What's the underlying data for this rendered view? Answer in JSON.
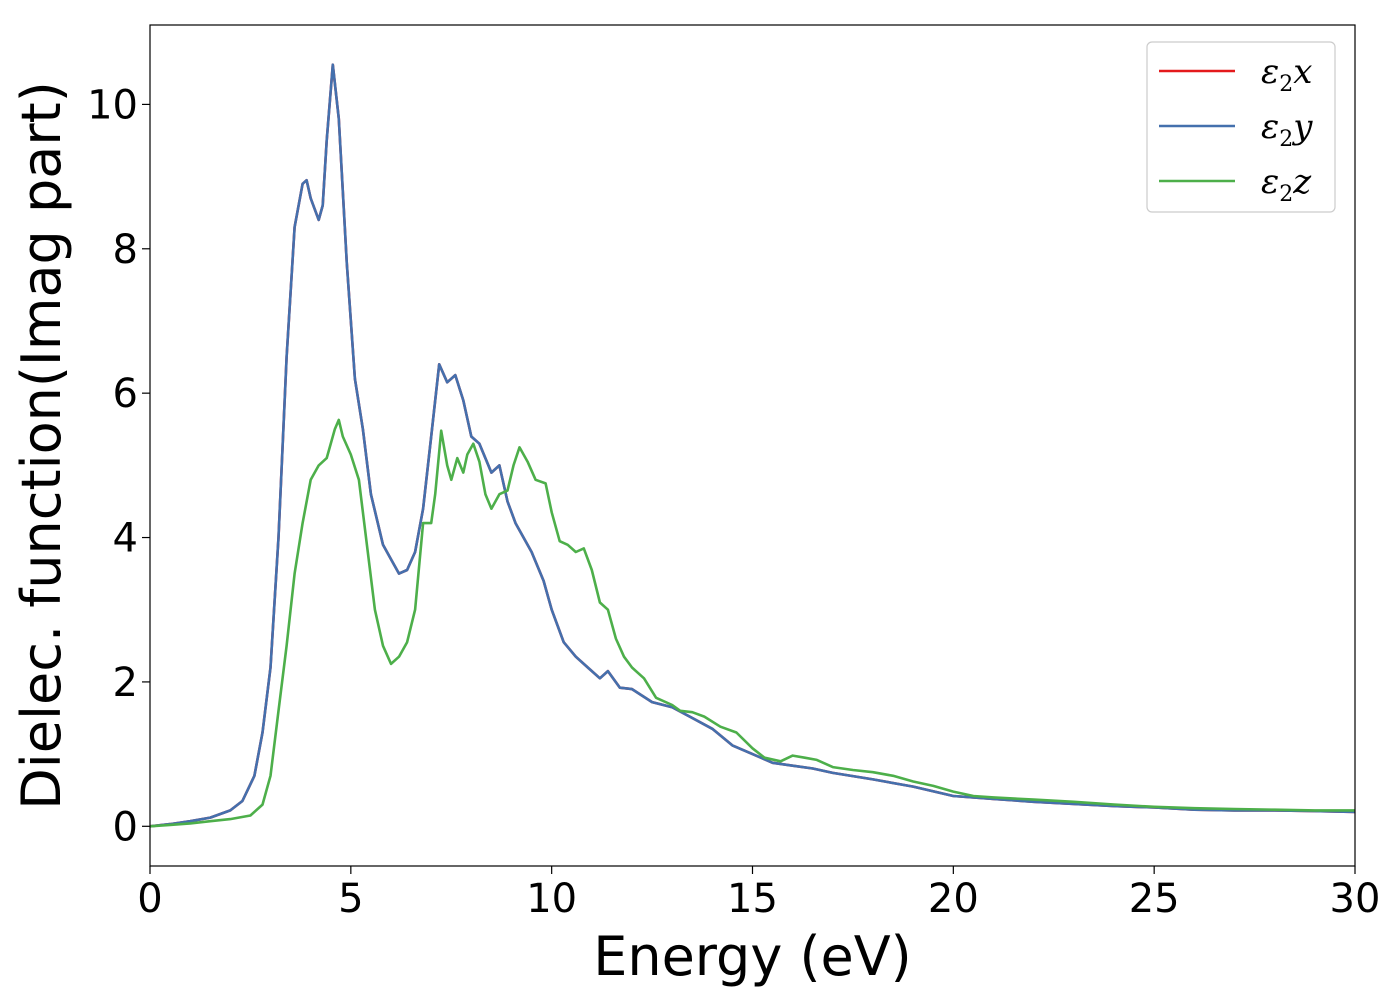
{
  "chart_data": {
    "type": "line",
    "xlabel": "Energy (eV)",
    "ylabel": "Dielec. function(Imag part)",
    "xlim": [
      0,
      30
    ],
    "ylim": [
      -0.55,
      11.1
    ],
    "xticks": [
      0,
      5,
      10,
      15,
      20,
      25,
      30
    ],
    "yticks": [
      0,
      2,
      4,
      6,
      8,
      10
    ],
    "grid": false,
    "legend_position": "top-right",
    "series": [
      {
        "name": "ε2x",
        "legend_base": "ε",
        "legend_sub": "2",
        "legend_var": "x",
        "color": "#e41a1c",
        "x": [
          0,
          0.5,
          1,
          1.5,
          2,
          2.3,
          2.6,
          2.8,
          3.0,
          3.2,
          3.4,
          3.6,
          3.8,
          3.9,
          4.0,
          4.2,
          4.3,
          4.4,
          4.55,
          4.7,
          4.9,
          5.1,
          5.3,
          5.5,
          5.8,
          6.0,
          6.2,
          6.4,
          6.6,
          6.8,
          7.0,
          7.2,
          7.4,
          7.6,
          7.8,
          8.0,
          8.2,
          8.5,
          8.7,
          8.9,
          9.1,
          9.5,
          9.8,
          10.0,
          10.3,
          10.6,
          10.9,
          11.2,
          11.4,
          11.7,
          12.0,
          12.5,
          13.0,
          13.5,
          14.0,
          14.5,
          15.0,
          15.5,
          16.0,
          16.5,
          17.0,
          18.0,
          19.0,
          20.0,
          21.0,
          22.0,
          23.0,
          24.0,
          25.0,
          26.0,
          27.0,
          28.0,
          29.0,
          30.0
        ],
        "y": [
          0.0,
          0.03,
          0.07,
          0.12,
          0.22,
          0.35,
          0.7,
          1.3,
          2.2,
          4.0,
          6.5,
          8.3,
          8.9,
          8.95,
          8.7,
          8.4,
          8.6,
          9.5,
          10.55,
          9.8,
          7.8,
          6.2,
          5.5,
          4.6,
          3.9,
          3.7,
          3.5,
          3.55,
          3.8,
          4.4,
          5.4,
          6.4,
          6.15,
          6.25,
          5.9,
          5.4,
          5.3,
          4.9,
          5.0,
          4.5,
          4.2,
          3.8,
          3.4,
          3.0,
          2.55,
          2.35,
          2.2,
          2.05,
          2.15,
          1.92,
          1.9,
          1.72,
          1.65,
          1.5,
          1.35,
          1.12,
          1.0,
          0.88,
          0.84,
          0.8,
          0.74,
          0.65,
          0.55,
          0.42,
          0.38,
          0.34,
          0.31,
          0.28,
          0.26,
          0.23,
          0.22,
          0.22,
          0.21,
          0.2
        ]
      },
      {
        "name": "ε2y",
        "legend_base": "ε",
        "legend_sub": "2",
        "legend_var": "y",
        "color": "#4470ad",
        "x": [
          0,
          0.5,
          1,
          1.5,
          2,
          2.3,
          2.6,
          2.8,
          3.0,
          3.2,
          3.4,
          3.6,
          3.8,
          3.9,
          4.0,
          4.2,
          4.3,
          4.4,
          4.55,
          4.7,
          4.9,
          5.1,
          5.3,
          5.5,
          5.8,
          6.0,
          6.2,
          6.4,
          6.6,
          6.8,
          7.0,
          7.2,
          7.4,
          7.6,
          7.8,
          8.0,
          8.2,
          8.5,
          8.7,
          8.9,
          9.1,
          9.5,
          9.8,
          10.0,
          10.3,
          10.6,
          10.9,
          11.2,
          11.4,
          11.7,
          12.0,
          12.5,
          13.0,
          13.5,
          14.0,
          14.5,
          15.0,
          15.5,
          16.0,
          16.5,
          17.0,
          18.0,
          19.0,
          20.0,
          21.0,
          22.0,
          23.0,
          24.0,
          25.0,
          26.0,
          27.0,
          28.0,
          29.0,
          30.0
        ],
        "y": [
          0.0,
          0.03,
          0.07,
          0.12,
          0.22,
          0.35,
          0.7,
          1.3,
          2.2,
          4.0,
          6.5,
          8.3,
          8.9,
          8.95,
          8.7,
          8.4,
          8.6,
          9.5,
          10.55,
          9.8,
          7.8,
          6.2,
          5.5,
          4.6,
          3.9,
          3.7,
          3.5,
          3.55,
          3.8,
          4.4,
          5.4,
          6.4,
          6.15,
          6.25,
          5.9,
          5.4,
          5.3,
          4.9,
          5.0,
          4.5,
          4.2,
          3.8,
          3.4,
          3.0,
          2.55,
          2.35,
          2.2,
          2.05,
          2.15,
          1.92,
          1.9,
          1.72,
          1.65,
          1.5,
          1.35,
          1.12,
          1.0,
          0.88,
          0.84,
          0.8,
          0.74,
          0.65,
          0.55,
          0.42,
          0.38,
          0.34,
          0.31,
          0.28,
          0.26,
          0.23,
          0.22,
          0.22,
          0.21,
          0.2
        ]
      },
      {
        "name": "ε2z",
        "legend_base": "ε",
        "legend_sub": "2",
        "legend_var": "z",
        "color": "#4daf4a",
        "x": [
          0,
          0.5,
          1,
          1.5,
          2,
          2.5,
          2.8,
          3.0,
          3.2,
          3.4,
          3.6,
          3.8,
          4.0,
          4.2,
          4.4,
          4.6,
          4.7,
          4.8,
          5.0,
          5.2,
          5.4,
          5.6,
          5.8,
          6.0,
          6.2,
          6.4,
          6.6,
          6.8,
          7.0,
          7.1,
          7.25,
          7.4,
          7.5,
          7.65,
          7.8,
          7.9,
          8.05,
          8.2,
          8.35,
          8.5,
          8.7,
          8.9,
          9.05,
          9.2,
          9.4,
          9.6,
          9.85,
          10.0,
          10.2,
          10.4,
          10.6,
          10.8,
          11.0,
          11.2,
          11.4,
          11.6,
          11.8,
          12.0,
          12.3,
          12.6,
          13.0,
          13.2,
          13.5,
          13.8,
          14.2,
          14.6,
          15.0,
          15.3,
          15.7,
          16.0,
          16.3,
          16.6,
          17.0,
          17.5,
          18.0,
          18.5,
          19.0,
          19.5,
          20.0,
          20.5,
          21.0,
          22.0,
          23.0,
          24.0,
          25.0,
          26.0,
          27.0,
          28.0,
          29.0,
          30.0
        ],
        "y": [
          0.0,
          0.02,
          0.04,
          0.07,
          0.1,
          0.15,
          0.3,
          0.7,
          1.6,
          2.5,
          3.5,
          4.2,
          4.8,
          5.0,
          5.1,
          5.5,
          5.63,
          5.4,
          5.15,
          4.8,
          3.9,
          3.0,
          2.5,
          2.25,
          2.35,
          2.55,
          3.0,
          4.2,
          4.2,
          4.6,
          5.48,
          5.0,
          4.8,
          5.1,
          4.9,
          5.15,
          5.3,
          5.05,
          4.6,
          4.4,
          4.6,
          4.65,
          5.0,
          5.25,
          5.05,
          4.8,
          4.75,
          4.35,
          3.95,
          3.9,
          3.8,
          3.85,
          3.55,
          3.1,
          3.0,
          2.6,
          2.35,
          2.2,
          2.05,
          1.78,
          1.68,
          1.6,
          1.58,
          1.52,
          1.38,
          1.3,
          1.08,
          0.95,
          0.9,
          0.98,
          0.95,
          0.92,
          0.82,
          0.78,
          0.75,
          0.7,
          0.62,
          0.56,
          0.48,
          0.42,
          0.4,
          0.37,
          0.34,
          0.3,
          0.27,
          0.25,
          0.24,
          0.23,
          0.22,
          0.22
        ]
      }
    ]
  }
}
